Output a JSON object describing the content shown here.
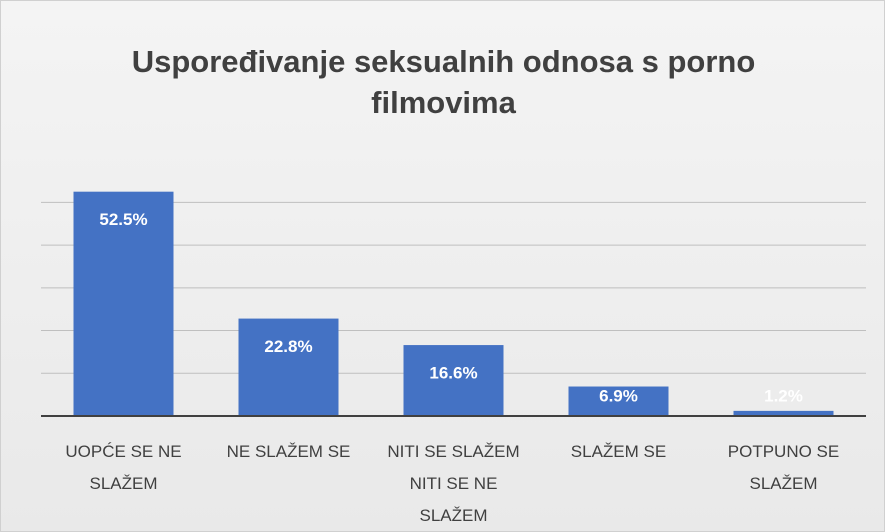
{
  "chart_data": {
    "type": "bar",
    "title": "Uspoređivanje seksualnih odnosa s porno filmovima",
    "categories": [
      "UOPĆE SE NE SLAŽEM",
      "NE SLAŽEM SE",
      "NITI SE SLAŽEM NITI SE NE SLAŽEM",
      "SLAŽEM SE",
      "POTPUNO SE SLAŽEM"
    ],
    "values": [
      52.5,
      22.8,
      16.6,
      6.9,
      1.2
    ],
    "value_labels": [
      "52.5%",
      "22.8%",
      "16.6%",
      "6.9%",
      "1.2%"
    ],
    "color": "#4472c4",
    "ylim": [
      0,
      55
    ],
    "yticks": [
      0,
      10,
      20,
      30,
      40,
      50
    ],
    "grid": true
  }
}
